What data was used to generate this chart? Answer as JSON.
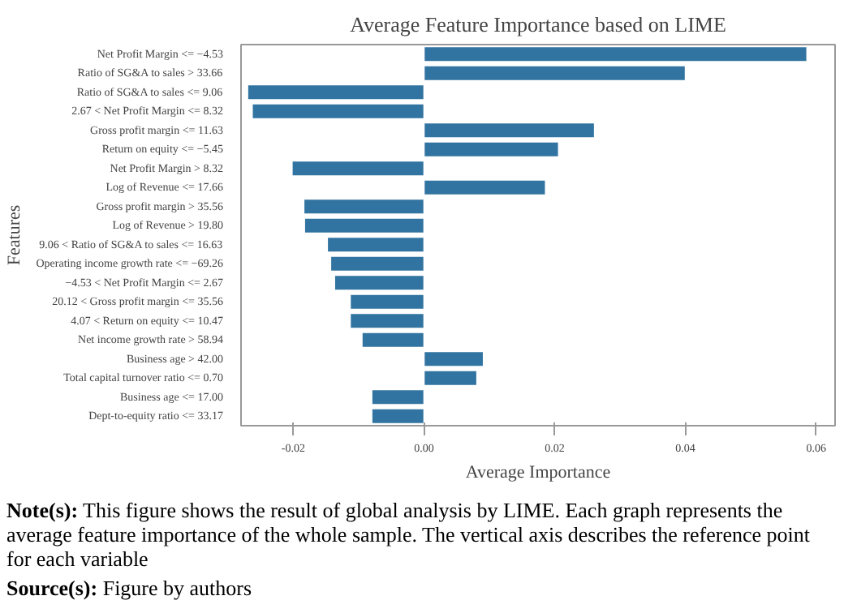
{
  "chart_data": {
    "type": "bar",
    "orientation": "horizontal",
    "title": "Average Feature Importance based on LIME",
    "xlabel": "Average Importance",
    "ylabel": "Features",
    "categories": [
      "Net Profit Margin <= −4.53",
      "Ratio of SG&A to sales > 33.66",
      "Ratio of SG&A to sales <= 9.06",
      "2.67 < Net Profit Margin <= 8.32",
      "Gross profit margin <= 11.63",
      "Return on equity <= −5.45",
      "Net Profit Margin > 8.32",
      "Log of Revenue <= 17.66",
      "Gross profit margin > 35.56",
      "Log of Revenue > 19.80",
      "9.06 < Ratio of SG&A to sales <= 16.63",
      "Operating income growth rate <= −69.26",
      "−4.53 < Net Profit Margin <= 2.67",
      "20.12 < Gross profit margin <= 35.56",
      "4.07 < Return on equity <= 10.47",
      "Net income growth rate > 58.94",
      "Business age > 42.00",
      "Total capital turnover ratio <= 0.70",
      "Business age <= 17.00",
      "Dept-to-equity ratio <= 33.17"
    ],
    "values": [
      0.0586,
      0.04,
      -0.027,
      -0.0263,
      0.0261,
      0.0206,
      -0.0202,
      0.0186,
      -0.0184,
      -0.0183,
      -0.0148,
      -0.0143,
      -0.0137,
      -0.0113,
      -0.0113,
      -0.0095,
      0.0091,
      0.0081,
      -0.008,
      -0.008
    ],
    "color": "#3274a1",
    "xlim": [
      -0.028,
      0.0629
    ],
    "xticks": [
      {
        "value": -0.02,
        "label": "-0.02"
      },
      {
        "value": 0,
        "label": "0.00"
      },
      {
        "value": 0.02,
        "label": "0.02"
      },
      {
        "value": 0.04,
        "label": "0.04"
      },
      {
        "value": 0.06,
        "label": "0.06"
      }
    ],
    "grid": false,
    "annotations": [
      "Note(s): This figure shows the result of global analysis by LIME. Each graph represents the average feature importance of the whole sample. The vertical axis describes the reference point for each variable",
      "Source(s): Figure by authors"
    ]
  }
}
